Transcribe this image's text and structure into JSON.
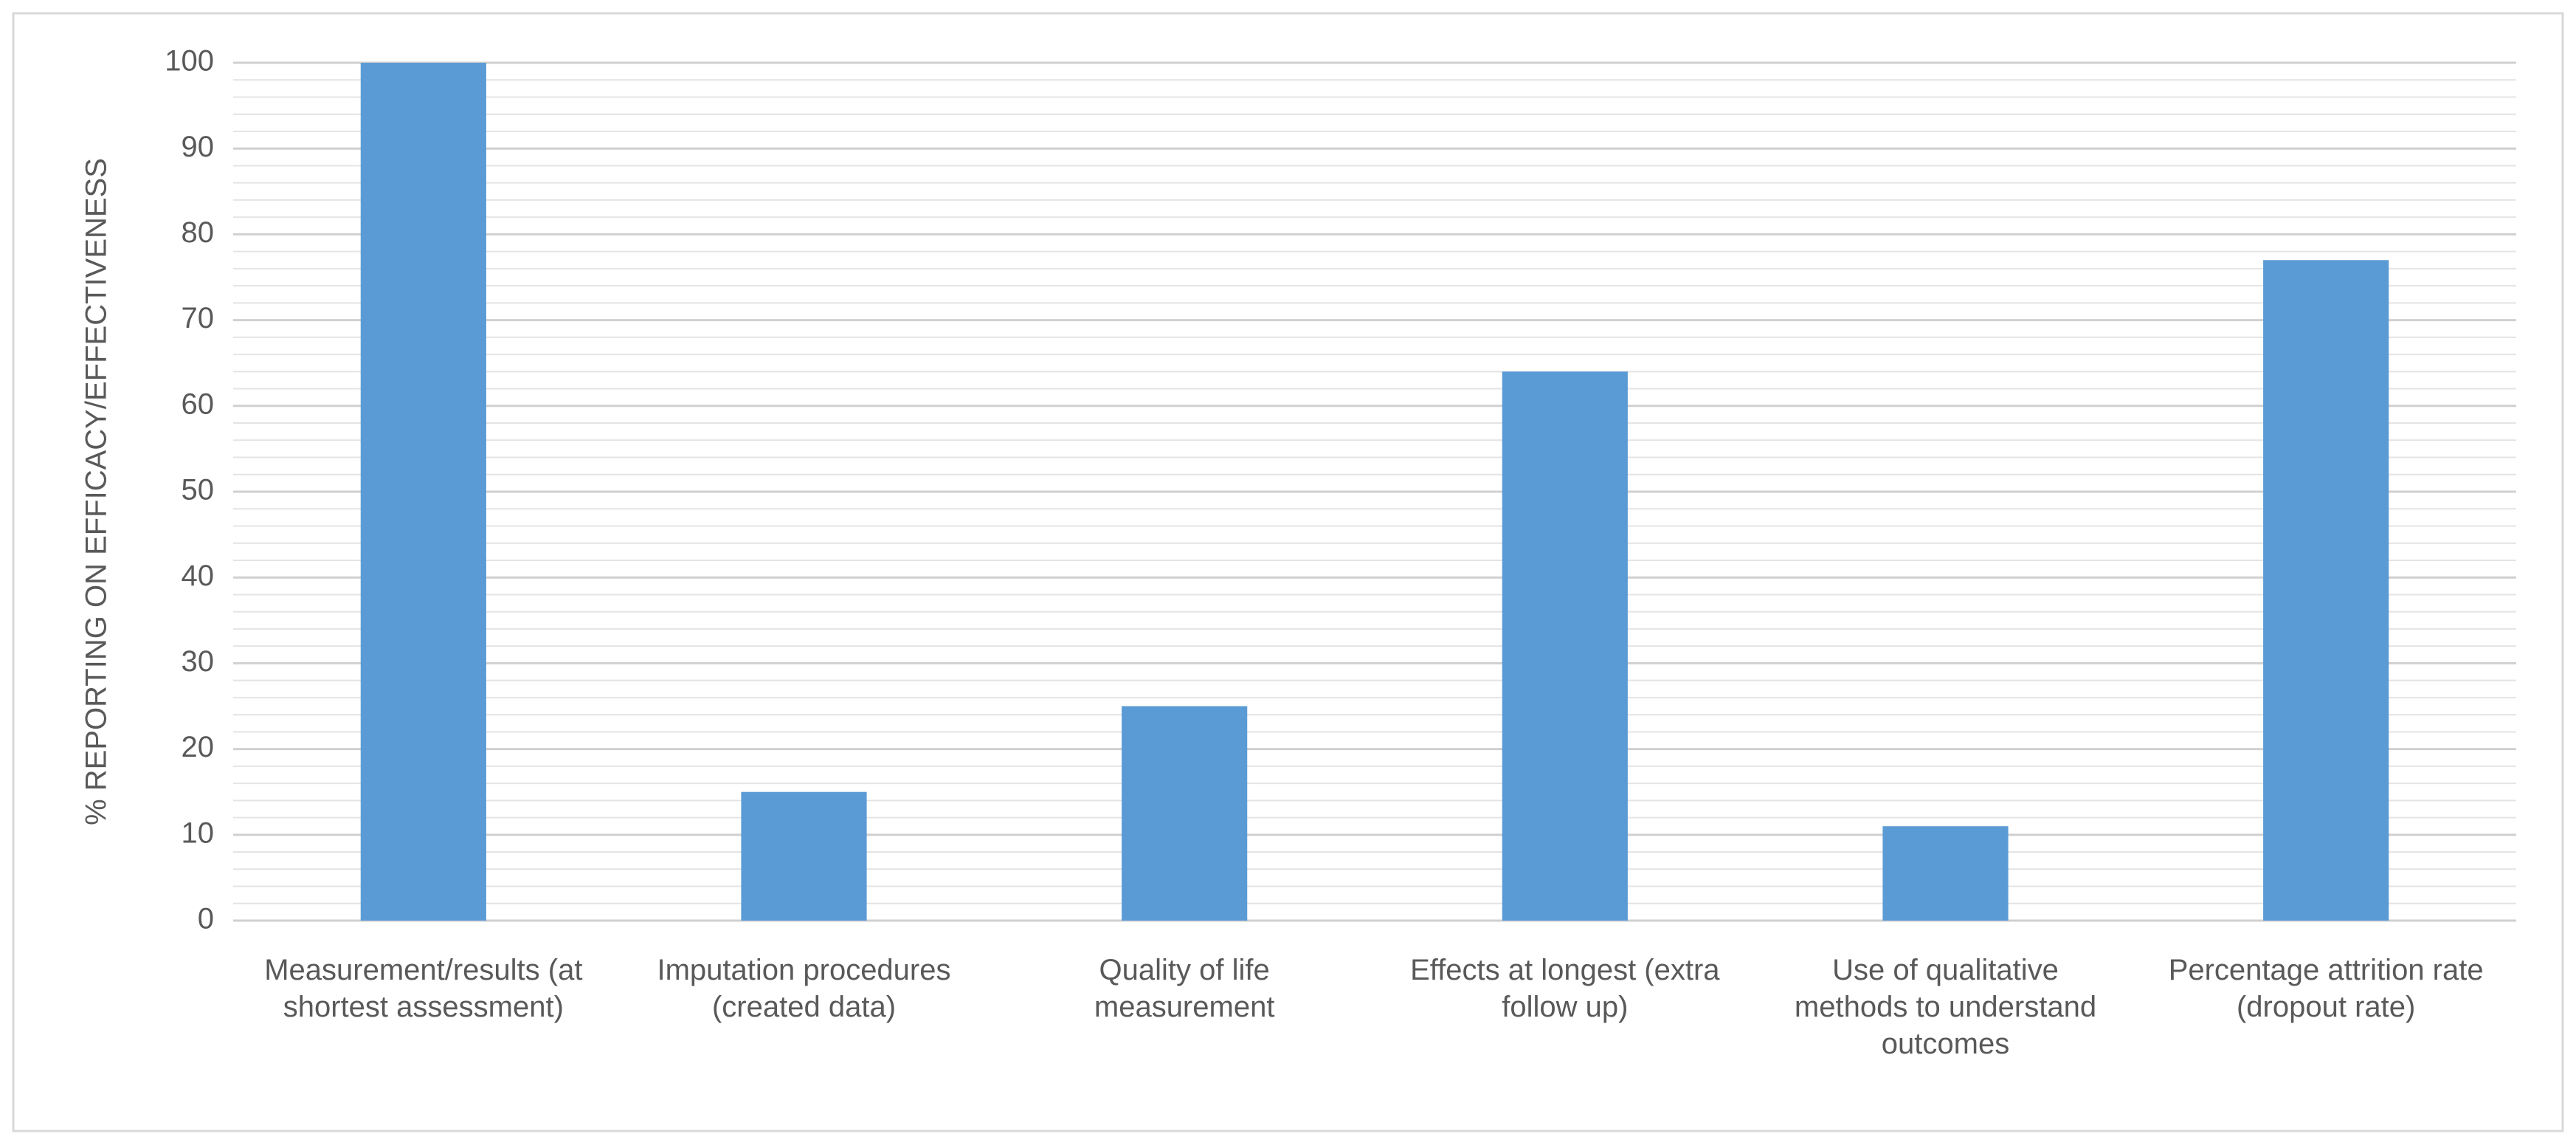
{
  "chart_data": {
    "type": "bar",
    "y_label": "% REPORTING ON EFFICACY/EFFECTIVENESS",
    "categories": [
      "Measurement/results (at shortest assessment)",
      "Imputation procedures (created data)",
      "Quality of life measurement",
      "Effects at longest (extra follow up)",
      "Use of qualitative methods to understand outcomes",
      "Percentage attrition rate (dropout rate)"
    ],
    "values": [
      100,
      15,
      25,
      64,
      11,
      77
    ],
    "color": "#5b9bd5",
    "ylim": [
      0,
      100
    ],
    "yticks": [
      0,
      10,
      20,
      30,
      40,
      50,
      60,
      70,
      80,
      90,
      100
    ],
    "grid": true
  }
}
